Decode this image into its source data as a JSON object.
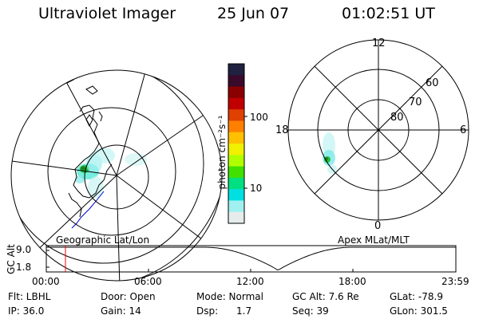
{
  "header": {
    "title": "Ultraviolet Imager",
    "date": "25 Jun 07",
    "time": "01:02:51 UT"
  },
  "geo_panel": {
    "caption": "Geographic Lat/Lon"
  },
  "mag_panel": {
    "caption": "Apex MLat/MLT",
    "mlt_labels": [
      "12",
      "6",
      "0",
      "18"
    ],
    "lat_labels": [
      "60",
      "70",
      "80"
    ]
  },
  "colorbar": {
    "label": "photon cm⁻²s⁻¹",
    "ticks": [
      "100",
      "10"
    ],
    "colors": [
      "#202040",
      "#3a0a2a",
      "#8a0000",
      "#c00000",
      "#e04000",
      "#ff8000",
      "#ffc000",
      "#f0f000",
      "#b0ff00",
      "#40e000",
      "#00e080",
      "#00e0e0",
      "#a0f0f0",
      "#e6ecec"
    ]
  },
  "timeline": {
    "ylabel": "GC Alt",
    "y_ticks": [
      "9.0",
      "1.8"
    ],
    "x_ticks": [
      "00:00",
      "06:00",
      "12:00",
      "18:00",
      "23:59"
    ],
    "cursor_color": "#ff0000"
  },
  "status": {
    "flt": "Flt: LBHL",
    "ip": "IP: 36.0",
    "door": "Door: Open",
    "gain": "Gain: 14",
    "mode": "Mode: Normal",
    "dsp": "Dsp:      1.7",
    "gcalt": "GC Alt: 7.6 Re",
    "seq": "Seq: 39",
    "glat": "GLat: -78.9",
    "glon": "GLon: 301.5"
  }
}
